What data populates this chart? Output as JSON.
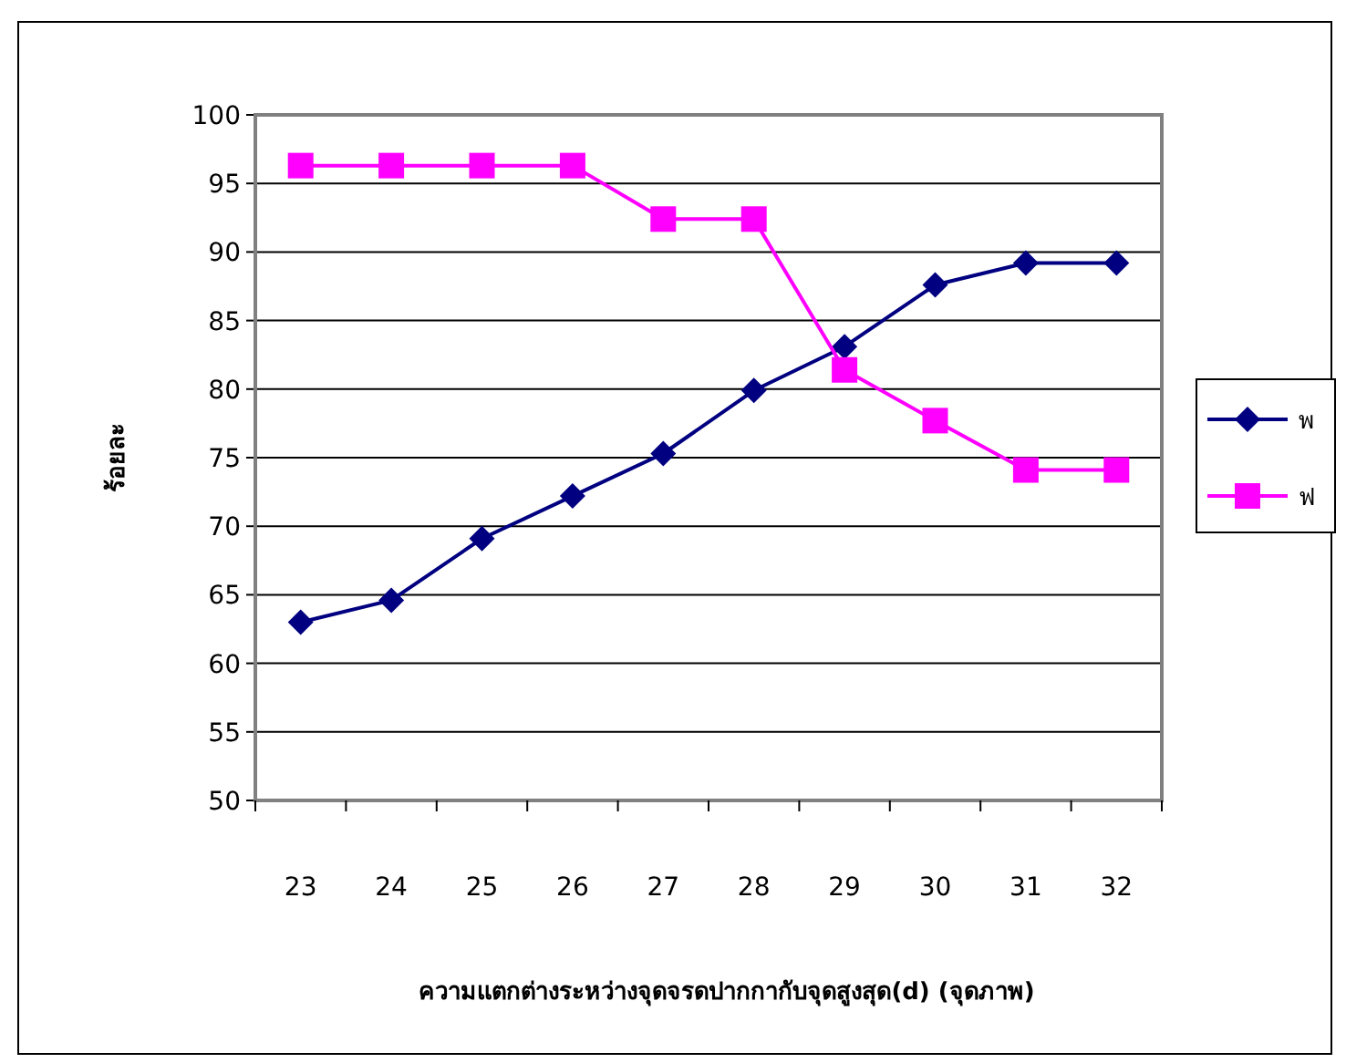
{
  "chart_data": {
    "type": "line",
    "xlabel": "ความแตกต่างระหว่างจุดจรดปากกากับจุดสูงสุด(d) (จุดภาพ)",
    "ylabel": "ร้อยละ",
    "categories": [
      "23",
      "24",
      "25",
      "26",
      "27",
      "28",
      "29",
      "30",
      "31",
      "32"
    ],
    "series": [
      {
        "name": "พ",
        "color": "#000080",
        "marker": "diamond",
        "values": [
          63.0,
          64.6,
          69.1,
          72.2,
          75.3,
          79.9,
          83.1,
          87.6,
          89.2,
          89.2
        ]
      },
      {
        "name": "ฟ",
        "color": "#ff00ff",
        "marker": "square",
        "values": [
          96.3,
          96.3,
          96.3,
          96.3,
          92.4,
          92.4,
          81.4,
          77.7,
          74.1,
          74.1
        ]
      }
    ],
    "ylim": [
      50,
      100
    ],
    "yticks": [
      50,
      55,
      60,
      65,
      70,
      75,
      80,
      85,
      90,
      95,
      100
    ],
    "grid": "y",
    "legend": "right"
  }
}
